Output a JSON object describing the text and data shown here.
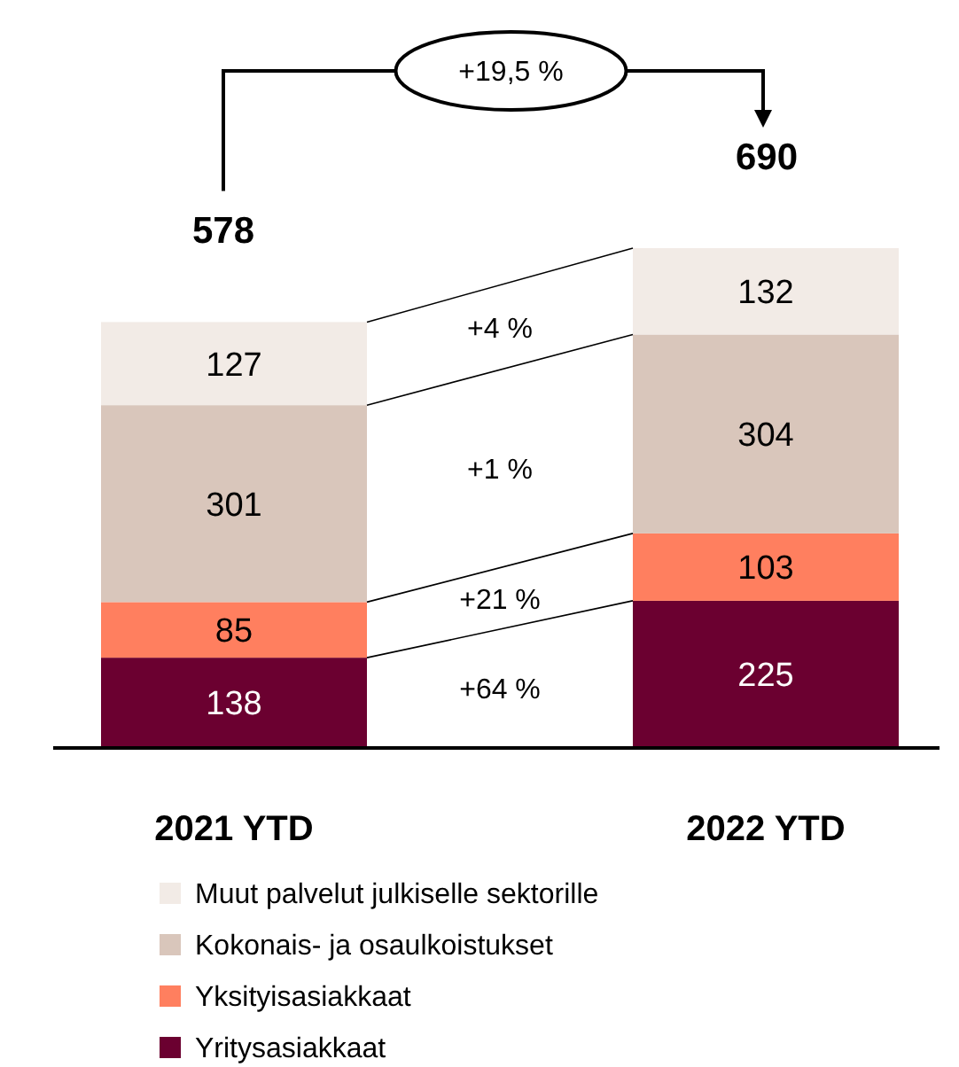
{
  "chart_data": {
    "type": "bar",
    "stacked": true,
    "data_labels": true,
    "legend": "bottom",
    "categories": [
      "2021 YTD",
      "2022 YTD"
    ],
    "series": [
      {
        "name": "Yritysasiakkaat",
        "color": "#6b0030",
        "values": [
          138,
          225
        ]
      },
      {
        "name": "Yksityisasiakkaat",
        "color": "#ff7f5f",
        "values": [
          85,
          103
        ]
      },
      {
        "name": "Kokonais- ja osaulkoistukset",
        "color": "#d9c6bb",
        "values": [
          301,
          304
        ]
      },
      {
        "name": "Muut palvelut julkiselle sektorille",
        "color": "#f2ebe6",
        "values": [
          127,
          132
        ]
      }
    ],
    "annotations": [
      "578",
      "690",
      "+19,5 %",
      "+64 %",
      "+21 %",
      "+1 %",
      "+4 %"
    ]
  }
}
